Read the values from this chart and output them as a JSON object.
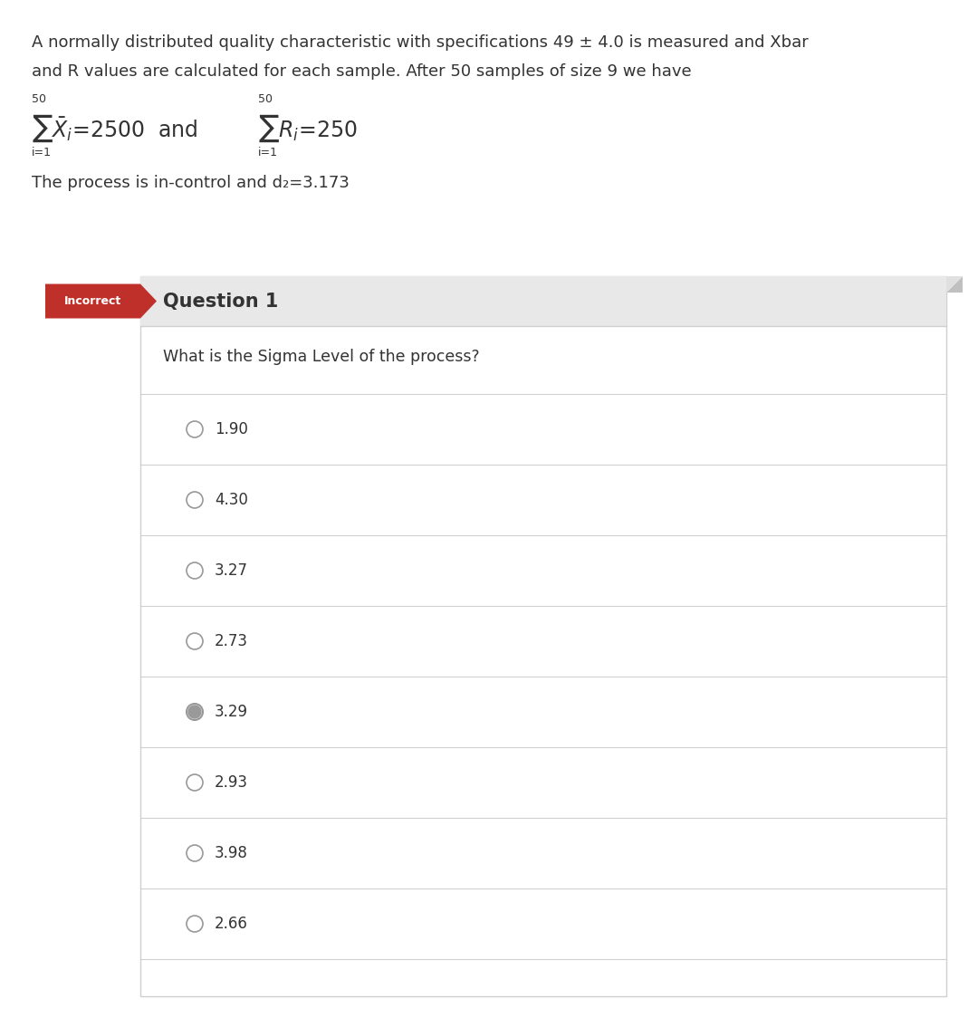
{
  "bg_color": "#ffffff",
  "page_bg": "#f0f0f0",
  "white": "#ffffff",
  "text_color": "#333333",
  "gray_text": "#999999",
  "line_color": "#d0d0d0",
  "red_color": "#c0302a",
  "selected_fill": "#999999",
  "header_bg": "#e8e8e8",
  "question_box_bg": "#f7f7f7",
  "problem_text_line1": "A normally distributed quality characteristic with specifications 49 ± 4.0 is measured and Xbar",
  "problem_text_line2": "and R values are calculated for each sample. After 50 samples of size 9 we have",
  "d2_text": "The process is in-control and d₂=3.173",
  "question_label": "Incorrect",
  "question_title": "Question 1",
  "question_text": "What is the Sigma Level of the process?",
  "options": [
    "1.90",
    "4.30",
    "3.27",
    "2.73",
    "3.29",
    "2.93",
    "3.98",
    "2.66"
  ],
  "selected_option": "3.29",
  "fig_width": 10.8,
  "fig_height": 11.24,
  "dpi": 100
}
